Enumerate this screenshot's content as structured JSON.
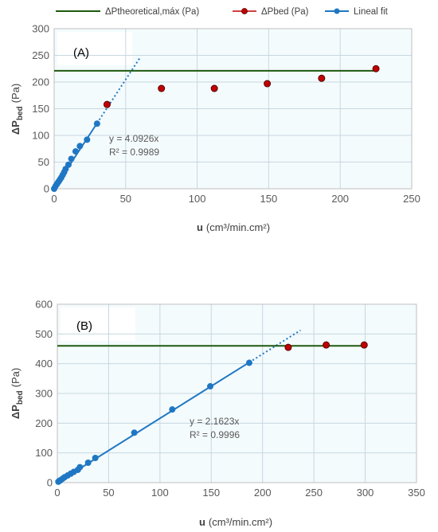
{
  "legend": {
    "theoretical": "ΔPtheoretical,máx (Pa)",
    "bed": "ΔPbed (Pa)",
    "fit": "Lineal fit"
  },
  "colors": {
    "theoretical_line": "#1e5a0e",
    "bed_marker_fill": "#c00000",
    "bed_marker_edge": "#5a0000",
    "fit_line": "#1f77c4",
    "plot_bg": "#f4fbfd",
    "grid": "#c7d8e0"
  },
  "chart_data": [
    {
      "type": "scatter",
      "panel_label": "(A)",
      "xlabel_bold": "u",
      "xlabel_rest": "(cm³/min.cm²)",
      "ylabel_main": "ΔP",
      "ylabel_sub": "bed",
      "ylabel_unit": "(Pa)",
      "xlim": [
        0,
        250
      ],
      "ylim": [
        0,
        300
      ],
      "xticks": [
        0,
        50,
        100,
        150,
        200,
        250
      ],
      "yticks": [
        0,
        50,
        100,
        150,
        200,
        250,
        300
      ],
      "grid": true,
      "legend_position": "top",
      "equation": "y = 4.0926x",
      "r2": "R² = 0.9989",
      "series": [
        {
          "name": "ΔPtheoretical,máx (Pa)",
          "kind": "hline",
          "y": 221,
          "x_range": [
            0,
            225
          ]
        },
        {
          "name": "ΔPbed (Pa)",
          "kind": "points",
          "x": [
            37,
            75,
            112,
            149,
            187,
            225
          ],
          "y": [
            158,
            188,
            188,
            197,
            207,
            225
          ]
        },
        {
          "name": "Lineal fit",
          "kind": "fit",
          "slope": 4.0926,
          "solid_range": [
            0,
            30
          ],
          "dotted_range": [
            30,
            60
          ],
          "x": [
            0,
            1,
            2,
            3,
            4,
            5,
            6,
            7,
            8,
            10,
            12,
            15,
            18,
            23,
            30
          ],
          "y": [
            0,
            5,
            9,
            13,
            17,
            21,
            26,
            31,
            37,
            45,
            56,
            70,
            80,
            92,
            122
          ]
        }
      ]
    },
    {
      "type": "scatter",
      "panel_label": "(B)",
      "xlabel_bold": "u",
      "xlabel_rest": "(cm³/min.cm²)",
      "ylabel_main": "ΔP",
      "ylabel_sub": "bed",
      "ylabel_unit": "(Pa)",
      "xlim": [
        0,
        350
      ],
      "ylim": [
        0,
        600
      ],
      "xticks": [
        0,
        50,
        100,
        150,
        200,
        250,
        300,
        350
      ],
      "yticks": [
        0,
        100,
        200,
        300,
        400,
        500,
        600
      ],
      "grid": true,
      "legend_position": "none",
      "equation": "y = 2.1623x",
      "r2": "R² = 0.9996",
      "series": [
        {
          "name": "ΔPtheoretical,máx (Pa)",
          "kind": "hline",
          "y": 460,
          "x_range": [
            0,
            300
          ]
        },
        {
          "name": "ΔPbed (Pa)",
          "kind": "points",
          "x": [
            225,
            262,
            299
          ],
          "y": [
            455,
            463,
            463
          ]
        },
        {
          "name": "Lineal fit",
          "kind": "fit",
          "slope": 2.1623,
          "solid_range": [
            0,
            187
          ],
          "dotted_range": [
            187,
            237
          ],
          "x": [
            1,
            2,
            3,
            5,
            7,
            10,
            13,
            16,
            20,
            22,
            30,
            37,
            75,
            112,
            149,
            187
          ],
          "y": [
            3,
            6,
            8,
            13,
            18,
            24,
            30,
            36,
            43,
            52,
            67,
            83,
            168,
            246,
            324,
            403
          ]
        }
      ]
    }
  ]
}
